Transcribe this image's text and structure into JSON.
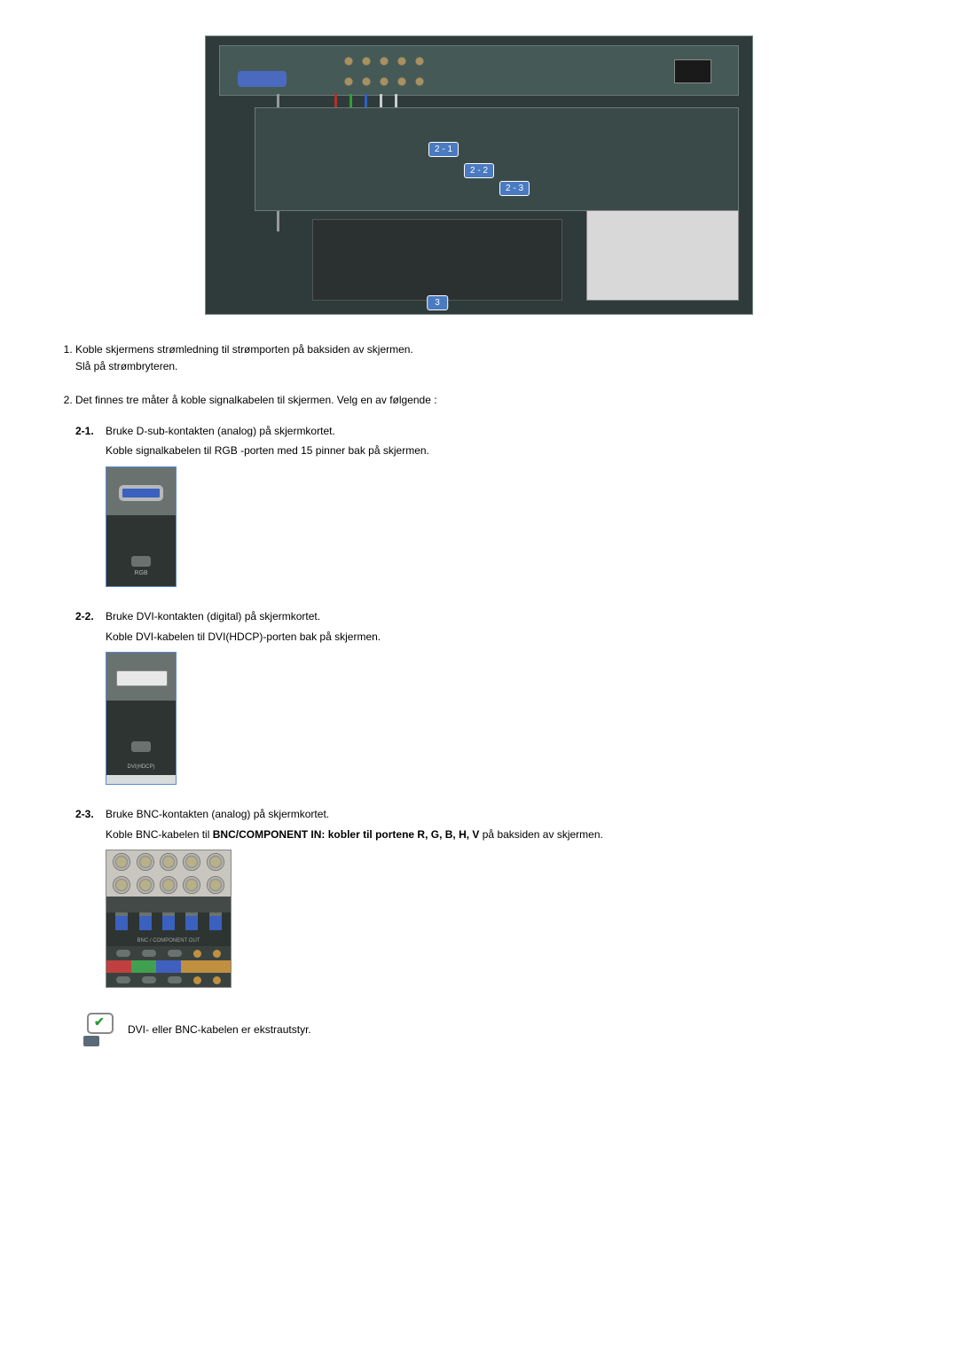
{
  "hero": {
    "labels": {
      "l21": "2 - 1",
      "l22": "2 - 2",
      "l23": "2 - 3",
      "l3": "3"
    }
  },
  "steps": {
    "s1": {
      "line1": "Koble skjermens strømledning til strømporten på baksiden av skjermen.",
      "line2": "Slå på strømbryteren."
    },
    "s2": {
      "intro": "Det finnes tre måter å koble signalkabelen til skjermen. Velg en av følgende :",
      "s21": {
        "num": "2-1.",
        "l1": "Bruke D-sub-kontakten (analog) på skjermkortet.",
        "l2": "Koble signalkabelen til RGB -porten med 15 pinner bak på skjermen."
      },
      "s22": {
        "num": "2-2.",
        "l1": "Bruke DVI-kontakten (digital) på skjermkortet.",
        "l2": "Koble DVI-kabelen til DVI(HDCP)-porten bak på skjermen."
      },
      "s23": {
        "num": "2-3.",
        "l1": "Bruke BNC-kontakten (analog) på skjermkortet.",
        "l2a": "Koble BNC-kabelen til ",
        "l2b": "BNC/COMPONENT IN: kobler til portene R, G, B, H, V",
        "l2c": " på baksiden av skjermen."
      }
    }
  },
  "note": "DVI- eller BNC-kabelen er ekstrautstyr."
}
